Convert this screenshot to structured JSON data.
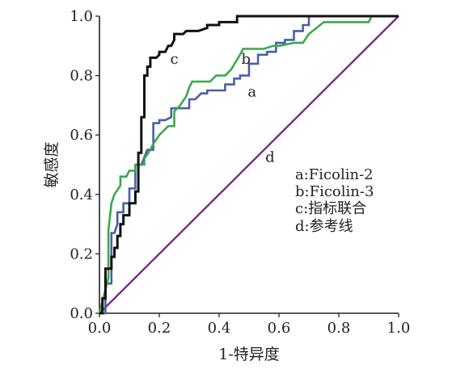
{
  "chart_data": {
    "type": "line",
    "xlabel": "1-特异度",
    "ylabel": "敏感度",
    "xlim": [
      0,
      1.0
    ],
    "ylim": [
      0,
      1.0
    ],
    "xticks": [
      "0.0",
      "0.2",
      "0.4",
      "0.6",
      "0.8",
      "1.0"
    ],
    "yticks": [
      "0.0",
      "0.2",
      "0.4",
      "0.6",
      "0.8",
      "1.0"
    ],
    "grid": false,
    "legend": {
      "position": "right-middle",
      "entries": [
        "a:Ficolin-2",
        "b:Ficolin-3",
        "c:指标联合",
        "d:参考线"
      ]
    },
    "series": [
      {
        "name": "a",
        "color": "#4a5fa8",
        "x": [
          0,
          0.02,
          0.02,
          0.04,
          0.04,
          0.05,
          0.06,
          0.06,
          0.08,
          0.08,
          0.1,
          0.1,
          0.12,
          0.12,
          0.14,
          0.14,
          0.16,
          0.17,
          0.18,
          0.18,
          0.2,
          0.2,
          0.22,
          0.24,
          0.24,
          0.27,
          0.3,
          0.3,
          0.32,
          0.34,
          0.36,
          0.36,
          0.38,
          0.4,
          0.42,
          0.42,
          0.45,
          0.45,
          0.47,
          0.47,
          0.5,
          0.5,
          0.53,
          0.53,
          0.56,
          0.56,
          0.59,
          0.59,
          0.62,
          0.62,
          0.65,
          0.65,
          0.68,
          0.68,
          0.7,
          0.7,
          1.0
        ],
        "y": [
          0,
          0,
          0.1,
          0.1,
          0.27,
          0.27,
          0.3,
          0.34,
          0.34,
          0.37,
          0.37,
          0.42,
          0.42,
          0.5,
          0.5,
          0.5,
          0.55,
          0.55,
          0.55,
          0.64,
          0.64,
          0.65,
          0.65,
          0.66,
          0.69,
          0.69,
          0.69,
          0.72,
          0.72,
          0.74,
          0.74,
          0.75,
          0.75,
          0.75,
          0.75,
          0.77,
          0.77,
          0.79,
          0.79,
          0.8,
          0.8,
          0.84,
          0.84,
          0.87,
          0.87,
          0.88,
          0.88,
          0.91,
          0.91,
          0.92,
          0.92,
          0.95,
          0.95,
          0.97,
          0.97,
          1.0,
          1.0
        ]
      },
      {
        "name": "b",
        "color": "#3aaa49",
        "x": [
          0,
          0.03,
          0.03,
          0.04,
          0.05,
          0.07,
          0.07,
          0.09,
          0.1,
          0.12,
          0.12,
          0.15,
          0.15,
          0.17,
          0.18,
          0.2,
          0.21,
          0.23,
          0.25,
          0.25,
          0.27,
          0.29,
          0.3,
          0.31,
          0.33,
          0.37,
          0.39,
          0.42,
          0.44,
          0.47,
          0.48,
          0.52,
          0.55,
          0.58,
          0.6,
          0.65,
          0.68,
          0.7,
          0.75,
          0.8,
          0.85,
          0.9,
          0.91,
          1.0
        ],
        "y": [
          0,
          0.12,
          0.28,
          0.37,
          0.4,
          0.43,
          0.46,
          0.46,
          0.48,
          0.48,
          0.5,
          0.5,
          0.52,
          0.55,
          0.57,
          0.6,
          0.61,
          0.63,
          0.63,
          0.68,
          0.7,
          0.73,
          0.76,
          0.78,
          0.78,
          0.78,
          0.8,
          0.8,
          0.82,
          0.87,
          0.89,
          0.89,
          0.89,
          0.9,
          0.9,
          0.91,
          0.91,
          0.94,
          0.98,
          0.98,
          0.98,
          0.98,
          1.0,
          1.0
        ]
      },
      {
        "name": "c",
        "color": "#111111",
        "x": [
          0,
          0.01,
          0.01,
          0.02,
          0.02,
          0.04,
          0.04,
          0.05,
          0.05,
          0.06,
          0.06,
          0.07,
          0.07,
          0.08,
          0.08,
          0.1,
          0.1,
          0.12,
          0.12,
          0.13,
          0.13,
          0.14,
          0.14,
          0.15,
          0.15,
          0.16,
          0.16,
          0.17,
          0.17,
          0.19,
          0.2,
          0.2,
          0.22,
          0.23,
          0.24,
          0.25,
          0.25,
          0.28,
          0.29,
          0.33,
          0.36,
          0.36,
          0.4,
          0.4,
          0.46,
          0.46,
          0.52,
          0.6,
          0.7,
          0.8,
          1.0
        ],
        "y": [
          0,
          0,
          0.05,
          0.05,
          0.15,
          0.15,
          0.19,
          0.19,
          0.22,
          0.22,
          0.26,
          0.26,
          0.3,
          0.3,
          0.33,
          0.33,
          0.37,
          0.37,
          0.41,
          0.41,
          0.54,
          0.54,
          0.66,
          0.66,
          0.8,
          0.8,
          0.83,
          0.83,
          0.86,
          0.86,
          0.87,
          0.88,
          0.88,
          0.9,
          0.9,
          0.92,
          0.94,
          0.94,
          0.95,
          0.95,
          0.96,
          0.97,
          0.97,
          0.98,
          0.98,
          1.0,
          1.0,
          1.0,
          1.0,
          1.0,
          1.0
        ]
      },
      {
        "name": "d",
        "color": "#7b2a82",
        "x": [
          0,
          1.0
        ],
        "y": [
          0,
          1.0
        ]
      }
    ],
    "curve_labels": [
      {
        "text": "a",
        "x": 0.51,
        "y": 0.73
      },
      {
        "text": "b",
        "x": 0.49,
        "y": 0.84
      },
      {
        "text": "c",
        "x": 0.25,
        "y": 0.84
      },
      {
        "text": "d",
        "x": 0.57,
        "y": 0.51
      }
    ]
  }
}
